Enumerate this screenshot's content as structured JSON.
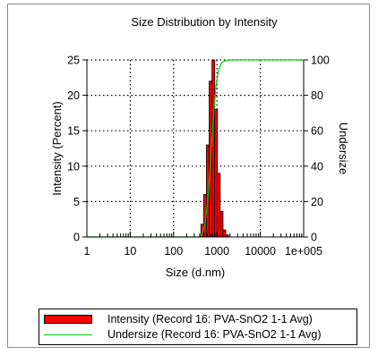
{
  "chart_data": {
    "type": "bar",
    "title": "Size Distribution by Intensity",
    "xlabel": "Size (d.nm)",
    "ylabel": "Intensity (Percent)",
    "y2label": "Undersize",
    "x_scale": "log",
    "xlim": [
      1,
      100000
    ],
    "ylim": [
      0,
      25
    ],
    "y2lim": [
      0,
      100
    ],
    "grid": true,
    "x_ticks": [
      1,
      10,
      100,
      1000,
      10000,
      100000
    ],
    "x_tick_labels": [
      "1",
      "10",
      "100",
      "1000",
      "10000",
      "1e+005"
    ],
    "y_ticks": [
      0,
      5,
      10,
      15,
      20,
      25
    ],
    "y_tick_labels": [
      "0",
      "5",
      "10",
      "15",
      "20",
      "25"
    ],
    "y2_ticks": [
      0,
      20,
      40,
      60,
      80,
      100
    ],
    "y2_tick_labels": [
      "0",
      "20",
      "40",
      "60",
      "80",
      "100"
    ],
    "series": [
      {
        "name": "Intensity (Record 16: PVA-SnO2 1-1 Avg)",
        "kind": "bar",
        "axis": "left",
        "color": "#ff0000",
        "x": [
          459,
          531,
          615,
          712,
          825,
          955,
          1106,
          1281,
          1484,
          1718
        ],
        "values": [
          1.8,
          6.0,
          13.0,
          22.0,
          25.0,
          18.0,
          9.0,
          3.6,
          1.0,
          0.3
        ]
      },
      {
        "name": "Undersize (Record 16: PVA-SnO2 1-1 Avg)",
        "kind": "line",
        "axis": "right",
        "color": "#00cc00",
        "x": [
          1,
          400,
          459,
          531,
          615,
          712,
          825,
          955,
          1106,
          1281,
          1484,
          1718,
          2000,
          10000,
          100000
        ],
        "values": [
          0,
          0,
          1.8,
          7.8,
          20.8,
          42.8,
          67.8,
          85.8,
          94.8,
          98.4,
          99.4,
          99.7,
          100,
          100,
          100
        ]
      }
    ],
    "legend_position": "bottom"
  }
}
